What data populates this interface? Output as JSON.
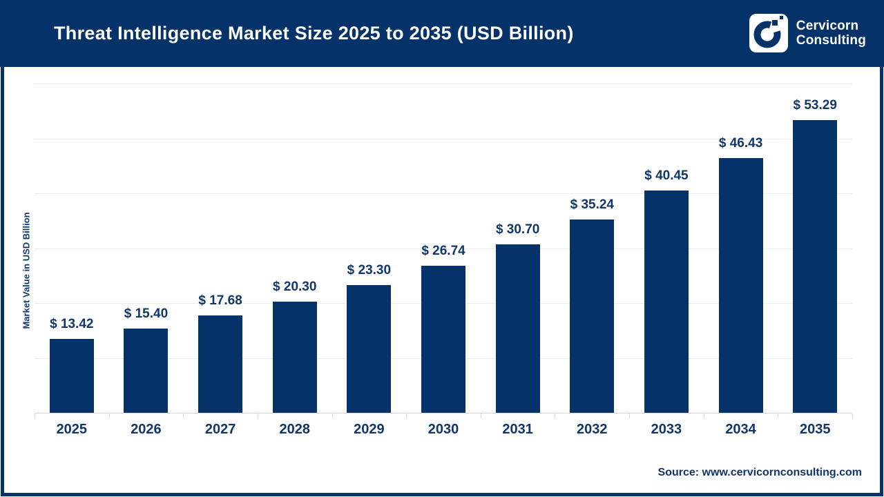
{
  "header": {
    "title": "Threat Intelligence Market Size 2025 to 2035 (USD Billion)",
    "brand": {
      "line1": "Cervicorn",
      "line2": "Consulting"
    }
  },
  "chart_data": {
    "type": "bar",
    "title": "Threat Intelligence Market Size 2025 to 2035 (USD Billion)",
    "categories": [
      "2025",
      "2026",
      "2027",
      "2028",
      "2029",
      "2030",
      "2031",
      "2032",
      "2033",
      "2034",
      "2035"
    ],
    "values": [
      13.42,
      15.4,
      17.68,
      20.3,
      23.3,
      26.74,
      30.7,
      35.24,
      40.45,
      46.43,
      53.29
    ],
    "value_labels": [
      "$ 13.42",
      "$ 15.40",
      "$ 17.68",
      "$ 20.30",
      "$ 23.30",
      "$ 26.74",
      "$ 30.70",
      "$ 35.24",
      "$ 40.45",
      "$ 46.43",
      "$ 53.29"
    ],
    "xlabel": "",
    "ylabel": "Market Value in USD Billion",
    "ylim": [
      0,
      60
    ],
    "grid": true,
    "gridline_step": 10,
    "legend": false,
    "y_tick_labels_visible": false
  },
  "footer": {
    "source": "Source: www.cervicornconsulting.com"
  },
  "colors": {
    "navy": "#043269",
    "header_bg": "#043269",
    "bar": "#043269",
    "title_text": "#FFFFFF",
    "label_text": "#11366B",
    "gridline": "#EDEDED",
    "axis_line": "#D8D8D8",
    "background": "#FFFFFF"
  }
}
